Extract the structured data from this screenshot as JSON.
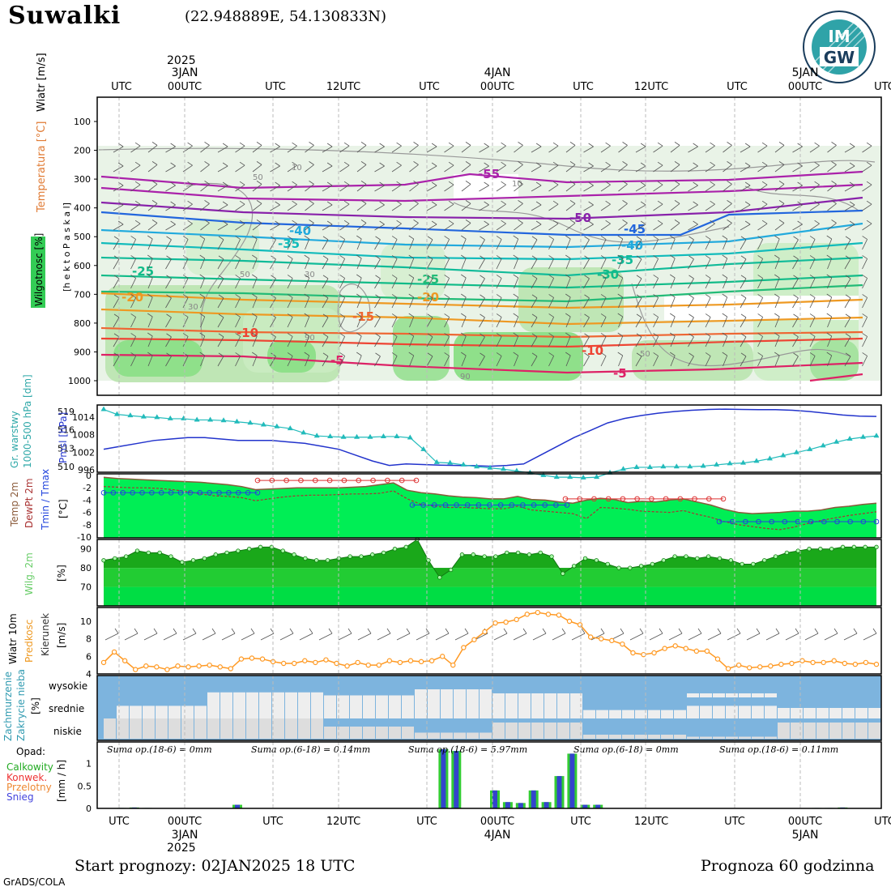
{
  "title": "Suwalki",
  "coords": "(22.948889E, 54.130833N)",
  "logo_text": "IMGW",
  "top_axis": {
    "year": "2025",
    "labels": [
      {
        "t": "UTC",
        "d": ""
      },
      {
        "t": "00UTC",
        "d": "3JAN"
      },
      {
        "t": "UTC",
        "d": ""
      },
      {
        "t": "12UTC",
        "d": ""
      },
      {
        "t": "UTC",
        "d": ""
      },
      {
        "t": "00UTC",
        "d": "4JAN"
      },
      {
        "t": "UTC",
        "d": ""
      },
      {
        "t": "12UTC",
        "d": ""
      },
      {
        "t": "UTC",
        "d": ""
      },
      {
        "t": "00UTC",
        "d": "5JAN"
      },
      {
        "t": "UTC",
        "d": ""
      }
    ]
  },
  "bottom_axis": {
    "year": "2025",
    "labels": [
      {
        "t": "UTC",
        "d": ""
      },
      {
        "t": "00UTC",
        "d": "3JAN"
      },
      {
        "t": "UTC",
        "d": ""
      },
      {
        "t": "12UTC",
        "d": ""
      },
      {
        "t": "UTC",
        "d": ""
      },
      {
        "t": "00UTC",
        "d": "4JAN"
      },
      {
        "t": "UTC",
        "d": ""
      },
      {
        "t": "12UTC",
        "d": ""
      },
      {
        "t": "UTC",
        "d": ""
      },
      {
        "t": "00UTC",
        "d": "5JAN"
      },
      {
        "t": "UTC",
        "d": ""
      }
    ]
  },
  "panel_labels": {
    "wiatr": "Wiatr [m/s]",
    "temperatura": "Temperatura [°C]",
    "wilgotnosc": "Wilgotnosc [%]",
    "hpa_axis": "[h e k t o P a s k a l]",
    "gr_warstwy": "Gr. warstwy",
    "gr_range": "1000-500 hPa [dm]",
    "pmsl": "Pmsl [hPa]",
    "temp2m": "Temp 2m",
    "dewpt": "DewPt 2m",
    "tminmax": "Tmin / Tmax",
    "temp_unit": "[°C]",
    "wilg2m": "Wilg. 2m",
    "pct": "[%]",
    "wiatr10m": "Wiatr 10m",
    "predkosc": "Predkosc",
    "kierunek": "Kierunek",
    "ms": "[m/s]",
    "zachmurzenie": "Zachmurzenie",
    "zakrycie": "Zakrycie nieba",
    "opad": "Opad:",
    "calkowity": "Calkowity",
    "konwek": "Konwek.",
    "przelotny": "Przelotny",
    "snieg": "Snieg",
    "mmh": "[mm / h]",
    "wysokie": "wysokie",
    "srednie": "srednie",
    "niskie": "niskie"
  },
  "sumy": [
    "Suma op.(18-6) = 0mm",
    "Suma op.(6-18) = 0.14mm",
    "Suma op.(18-6) = 5.97mm",
    "Suma op.(6-18) = 0mm",
    "Suma op.(18-6) = 0.11mm"
  ],
  "footer": {
    "start": "Start prognozy: 02JAN2025 18 UTC",
    "forecast": "Prognoza 60 godzinna",
    "credit": "GrADS/COLA"
  },
  "colors": {
    "grid": "#bbbbbb",
    "humidity_green": "#00ee55",
    "precip_green": "#33cc33",
    "precip_blue": "#3344cc",
    "cloud_blue": "#7db4de",
    "pmsl_line": "#2233cc",
    "gr_line": "#22bbbb",
    "tmax": "#dd3333",
    "tmin": "#2244dd",
    "wind_orange": "#ff9922"
  },
  "chart_data": [
    {
      "type": "contour",
      "title": "",
      "ylabel": "hektoPaskal",
      "ylim": [
        1000,
        50
      ],
      "y_ticks": [
        100,
        200,
        300,
        400,
        500,
        600,
        700,
        800,
        900,
        1000
      ],
      "temperature_contour_labels": [
        "-55",
        "-50",
        "-45",
        "-40",
        "-40",
        "-35",
        "-35",
        "-30",
        "-25",
        "-25",
        "-20",
        "-20",
        "-15",
        "-10",
        "-10",
        "-5",
        "-5"
      ],
      "humidity_contour_labels": [
        "10",
        "50",
        "10",
        "50",
        "30",
        "30",
        "90",
        "50",
        "90"
      ]
    },
    {
      "type": "line",
      "series": [
        {
          "name": "Gr. warstwy",
          "unit": "dm",
          "values": [
            519.3,
            518.5,
            518.3,
            518.1,
            518.0,
            517.8,
            517.8,
            517.6,
            517.6,
            517.5,
            517.3,
            517.1,
            516.8,
            516.5,
            516.2,
            515.5,
            515.0,
            514.9,
            514.8,
            514.8,
            514.8,
            514.9,
            514.9,
            514.7,
            512.8,
            510.7,
            510.6,
            510.3,
            510.0,
            509.8,
            509.6,
            509.3,
            509.0,
            508.6,
            508.3,
            508.3,
            508.2,
            508.3,
            509.0,
            509.6,
            509.9,
            509.9,
            510.0,
            510.0,
            510.0,
            510.1,
            510.3,
            510.5,
            510.6,
            510.9,
            511.3,
            511.8,
            512.3,
            512.8,
            513.4,
            514.0,
            514.5,
            514.8,
            515.0
          ]
        },
        {
          "name": "Pmsl",
          "unit": "hPa",
          "values": [
            1003,
            1004,
            1005,
            1006,
            1006.5,
            1007,
            1007,
            1006.5,
            1006,
            1006,
            1006,
            1005.5,
            1005,
            1004,
            1003,
            1001,
            999,
            997.5,
            998,
            997.8,
            997.6,
            997.5,
            997.4,
            997.2,
            997.5,
            998,
            1001,
            1004,
            1007,
            1009.5,
            1012,
            1013.5,
            1014.5,
            1015.3,
            1015.9,
            1016.3,
            1016.6,
            1016.7,
            1016.6,
            1016.5,
            1016.5,
            1016.3,
            1015.9,
            1015.3,
            1014.7,
            1014.3,
            1014.2
          ]
        }
      ],
      "y_ticks_gr": [
        510,
        513,
        516,
        519
      ],
      "y_ticks_pmsl": [
        996,
        1002,
        1008,
        1014
      ]
    },
    {
      "type": "line",
      "ylim": [
        -10,
        0
      ],
      "y_ticks": [
        0,
        -2,
        -4,
        -6,
        -8,
        -10
      ],
      "series": [
        {
          "name": "Temp 2m",
          "values": [
            -0.3,
            -0.5,
            -0.6,
            -0.7,
            -0.8,
            -0.9,
            -1.0,
            -1.1,
            -1.3,
            -1.5,
            -1.8,
            -2.3,
            -2.2,
            -2.1,
            -2.0,
            -2.0,
            -2.0,
            -2.0,
            -1.9,
            -1.8,
            -1.5,
            -1.2,
            -2.4,
            -2.8,
            -3.0,
            -3.3,
            -3.5,
            -3.6,
            -3.8,
            -3.8,
            -3.4,
            -3.9,
            -4.0,
            -4.3,
            -4.5,
            -4.0,
            -3.7,
            -3.9,
            -4.4,
            -4.2,
            -4.3,
            -4.0,
            -3.8,
            -4.3,
            -4.8,
            -5.5,
            -6.0,
            -6.2,
            -6.1,
            -6.0,
            -5.8,
            -5.8,
            -5.6,
            -5.2,
            -5.0,
            -4.7,
            -4.5
          ]
        },
        {
          "name": "DewPt 2m",
          "values": [
            -1.8,
            -1.9,
            -2.0,
            -2.0,
            -2.1,
            -2.3,
            -2.6,
            -3.0,
            -3.3,
            -3.4,
            -3.6,
            -4.1,
            -3.8,
            -3.5,
            -3.3,
            -3.2,
            -3.2,
            -3.1,
            -3.0,
            -3.0,
            -2.9,
            -2.5,
            -3.8,
            -4.7,
            -5.0,
            -5.2,
            -5.2,
            -5.3,
            -5.4,
            -5.4,
            -5.0,
            -5.6,
            -5.8,
            -6.0,
            -6.2,
            -7.0,
            -5.2,
            -5.3,
            -5.5,
            -5.8,
            -5.9,
            -6.0,
            -5.7,
            -6.3,
            -6.8,
            -7.5,
            -8.0,
            -8.3,
            -8.6,
            -8.8,
            -8.4,
            -7.8,
            -7.3,
            -6.9,
            -6.5,
            -6.2,
            -5.9
          ]
        },
        {
          "name": "Tmax",
          "values": [
            -0.8,
            -0.8,
            -0.8,
            -0.8,
            -0.8,
            -0.8,
            -0.8,
            -0.8,
            -0.8,
            -0.8,
            -0.8,
            -0.8,
            -3.8,
            -3.8,
            -3.8,
            -3.8,
            -3.8,
            -3.8,
            -3.8,
            -3.8,
            -3.8,
            -3.8,
            -3.8,
            -3.8
          ]
        },
        {
          "name": "Tmin",
          "values": [
            -2.8,
            -2.8,
            -2.8,
            -2.8,
            -2.8,
            -2.8,
            -2.8,
            -2.8,
            -2.8,
            -2.8,
            -2.8,
            -2.8,
            -2.8,
            -2.8,
            -2.8,
            -2.8,
            -2.8,
            -4.8,
            -4.8,
            -4.8,
            -4.8,
            -4.8,
            -4.8,
            -4.8,
            -4.8,
            -4.8,
            -4.8,
            -4.8,
            -4.8,
            -4.8,
            -4.8,
            -4.8,
            -7.5,
            -7.5,
            -7.5,
            -7.5,
            -7.5,
            -7.5,
            -7.5,
            -7.5,
            -7.5,
            -7.5,
            -7.5,
            -7.5,
            -7.5
          ]
        }
      ]
    },
    {
      "type": "area",
      "name": "Wilg. 2m",
      "ylim": [
        60,
        95
      ],
      "y_ticks": [
        70,
        80,
        90
      ],
      "values": [
        84,
        85,
        86,
        89,
        88,
        88,
        86,
        83,
        84,
        85,
        87,
        88,
        89,
        90,
        91,
        91,
        89,
        87,
        85,
        84,
        84,
        85,
        86,
        86,
        87,
        88,
        90,
        91,
        95,
        84,
        75,
        79,
        87,
        87,
        86,
        86,
        88,
        88,
        87,
        88,
        86,
        77,
        81,
        85,
        84,
        82,
        80,
        80,
        81,
        82,
        84,
        86,
        86,
        85,
        86,
        85,
        84,
        82,
        82,
        84,
        86,
        88,
        89,
        90,
        90,
        90,
        91,
        91,
        91,
        91
      ]
    },
    {
      "type": "line",
      "name": "Predkosc",
      "ylim": [
        4,
        11
      ],
      "y_ticks": [
        4,
        6,
        8,
        10
      ],
      "values": [
        5.3,
        6.5,
        5.5,
        4.5,
        4.9,
        4.8,
        4.5,
        4.9,
        4.8,
        4.9,
        5.0,
        4.8,
        4.6,
        5.7,
        5.8,
        5.7,
        5.4,
        5.2,
        5.2,
        5.5,
        5.3,
        5.6,
        5.2,
        4.9,
        5.3,
        5.0,
        5.0,
        5.5,
        5.3,
        5.5,
        5.4,
        5.5,
        6.0,
        5.0,
        7.0,
        7.9,
        8.8,
        9.8,
        9.9,
        10.2,
        10.8,
        11.0,
        10.8,
        10.7,
        10.0,
        9.6,
        8.2,
        8.0,
        7.8,
        7.4,
        6.4,
        6.2,
        6.4,
        6.9,
        7.2,
        6.9,
        6.6,
        6.6,
        5.7,
        4.6,
        5.0,
        4.7,
        4.8,
        4.9,
        5.1,
        5.2,
        5.5,
        5.3,
        5.3,
        5.5,
        5.2,
        5.1,
        5.3,
        5.1
      ]
    },
    {
      "type": "bar",
      "name": "Zachmurzenie",
      "levels": [
        "wysokie",
        "srednie",
        "niskie"
      ],
      "note": "values are percent cover per time step"
    },
    {
      "type": "bar",
      "name": "Opad",
      "ylabel": "mm / h",
      "ylim": [
        0,
        1.3
      ],
      "y_ticks": [
        0,
        0.5,
        1
      ],
      "times": [
        1,
        2,
        3,
        10,
        26,
        27,
        30,
        31,
        32,
        33,
        34,
        35,
        36,
        37,
        38,
        55,
        56,
        57
      ],
      "values": [
        0.01,
        0.02,
        0.01,
        0.08,
        1.32,
        1.28,
        0.4,
        0.14,
        0.12,
        0.4,
        0.14,
        0.72,
        1.22,
        0.08,
        0.08,
        0.01,
        0.01,
        0.02
      ]
    }
  ]
}
